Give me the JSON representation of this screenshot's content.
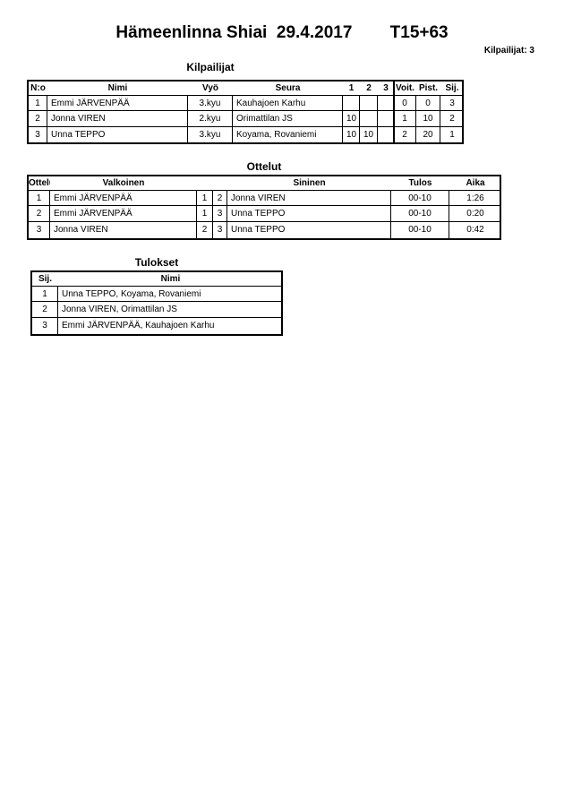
{
  "header": {
    "event": "Hämeenlinna Shiai",
    "date": "29.4.2017",
    "category": "T15+63",
    "participants_count": "Kilpailijat: 3"
  },
  "competitors": {
    "title": "Kilpailijat",
    "columns": [
      "N:o",
      "Nimi",
      "Vyö",
      "Seura",
      "1",
      "2",
      "3",
      "Voit.",
      "Pist.",
      "Sij."
    ],
    "rows": [
      [
        "1",
        "Emmi JÄRVENPÄÄ",
        "3.kyu",
        "Kauhajoen Karhu",
        "",
        "",
        "",
        "0",
        "0",
        "3"
      ],
      [
        "2",
        "Jonna VIREN",
        "2.kyu",
        "Orimattilan JS",
        "10",
        "",
        "",
        "1",
        "10",
        "2"
      ],
      [
        "3",
        "Unna TEPPO",
        "3.kyu",
        "Koyama, Rovaniemi",
        "10",
        "10",
        "",
        "2",
        "20",
        "1"
      ]
    ]
  },
  "matches": {
    "title": "Ottelut",
    "columns": [
      "Ottelu",
      "Valkoinen",
      "",
      "",
      "Sininen",
      "Tulos",
      "Aika"
    ],
    "rows": [
      [
        "1",
        "Emmi JÄRVENPÄÄ",
        "1",
        "2",
        "Jonna VIREN",
        "00-10",
        "1:26"
      ],
      [
        "2",
        "Emmi JÄRVENPÄÄ",
        "1",
        "3",
        "Unna TEPPO",
        "00-10",
        "0:20"
      ],
      [
        "3",
        "Jonna VIREN",
        "2",
        "3",
        "Unna TEPPO",
        "00-10",
        "0:42"
      ]
    ]
  },
  "results": {
    "title": "Tulokset",
    "columns": [
      "Sij.",
      "Nimi"
    ],
    "rows": [
      [
        "1",
        "Unna TEPPO, Koyama, Rovaniemi"
      ],
      [
        "2",
        "Jonna VIREN, Orimattilan JS"
      ],
      [
        "3",
        "Emmi JÄRVENPÄÄ, Kauhajoen Karhu"
      ]
    ]
  }
}
